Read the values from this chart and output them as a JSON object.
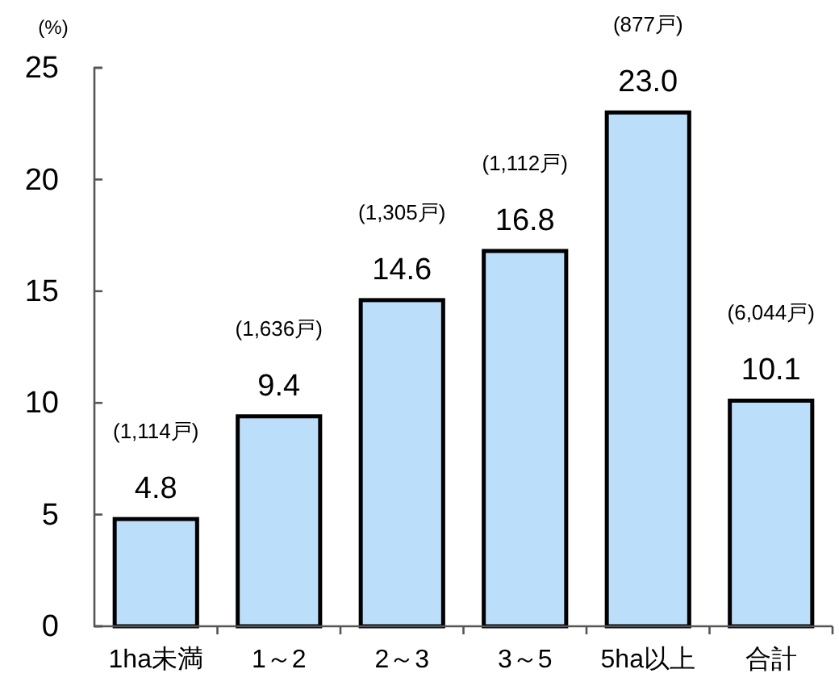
{
  "chart_data": {
    "type": "bar",
    "ylabel": "(%)",
    "categories": [
      "1ha未満",
      "1～2",
      "2～3",
      "3～5",
      "5ha以上",
      "合計"
    ],
    "values": [
      4.8,
      9.4,
      14.6,
      16.8,
      23.0,
      10.1
    ],
    "value_labels": [
      "4.8",
      "9.4",
      "14.6",
      "16.8",
      "23.0",
      "10.1"
    ],
    "color": "#bbdffa",
    "ylim": [
      0,
      25
    ],
    "yticks": [
      0,
      5,
      10,
      15,
      20,
      25
    ],
    "annotations": [
      "(1,114戸)",
      "(1,636戸)",
      "(1,305戸)",
      "(1,112戸)",
      "(877戸)",
      "(6,044戸)"
    ]
  }
}
